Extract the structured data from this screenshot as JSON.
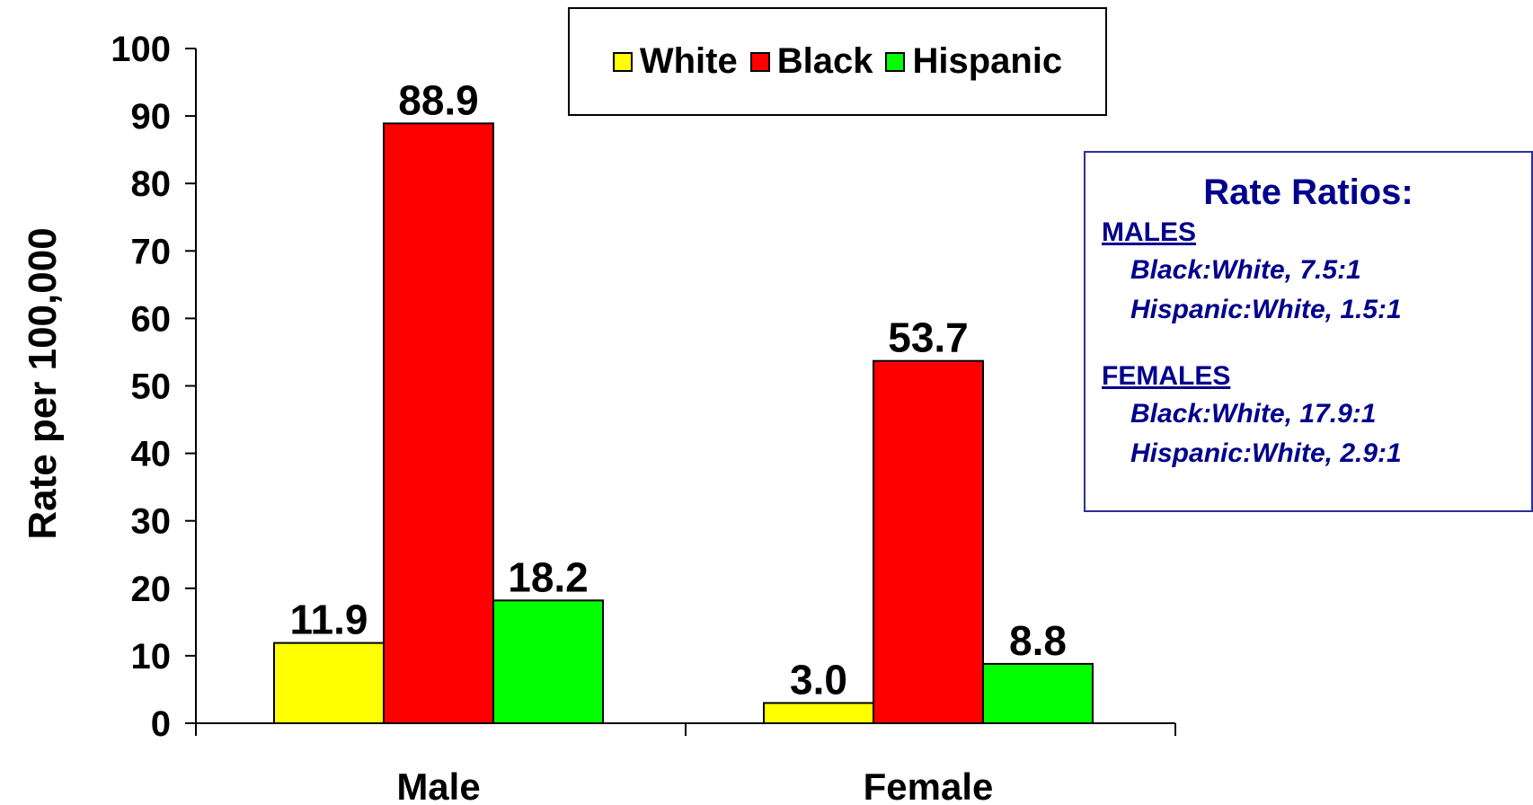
{
  "chart_data": {
    "type": "bar",
    "categories": [
      "Male",
      "Female"
    ],
    "series": [
      {
        "name": "White",
        "values": [
          11.9,
          3.0
        ],
        "labels": [
          "11.9",
          "3.0"
        ],
        "color": "#ffff00"
      },
      {
        "name": "Black",
        "values": [
          88.9,
          53.7
        ],
        "labels": [
          "88.9",
          "53.7"
        ],
        "color": "#ff0000"
      },
      {
        "name": "Hispanic",
        "values": [
          18.2,
          8.8
        ],
        "labels": [
          "18.2",
          "8.8"
        ],
        "color": "#00ff00"
      }
    ],
    "title": "",
    "xlabel": "",
    "ylabel": "Rate per 100,000",
    "ylim": [
      0,
      100
    ],
    "yticks": [
      0,
      10,
      20,
      30,
      40,
      50,
      60,
      70,
      80,
      90,
      100
    ],
    "grid": false,
    "legend_position": "top"
  },
  "ratio_box": {
    "title": "Rate Ratios:",
    "males_heading": "MALES",
    "males_line1": "Black:White, 7.5:1",
    "males_line2": "Hispanic:White, 1.5:1",
    "females_heading": "FEMALES",
    "females_line1": "Black:White, 17.9:1",
    "females_line2": "Hispanic:White, 2.9:1",
    "text_color": "#00008b"
  }
}
